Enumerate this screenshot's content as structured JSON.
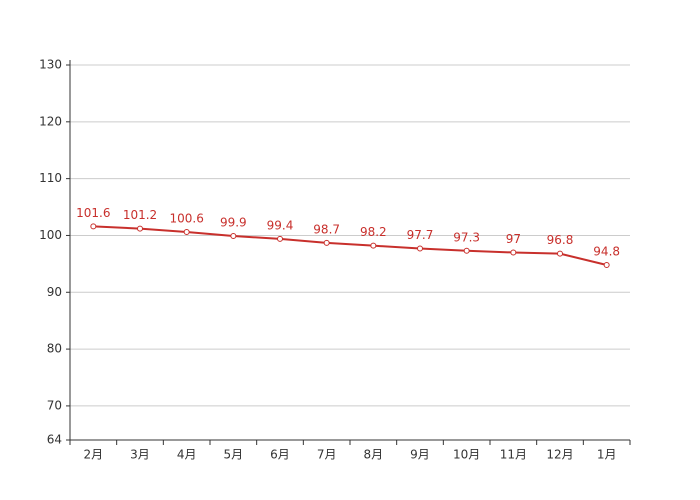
{
  "chart_data": {
    "type": "line",
    "categories": [
      "2月",
      "3月",
      "4月",
      "5月",
      "6月",
      "7月",
      "8月",
      "9月",
      "10月",
      "11月",
      "12月",
      "1月"
    ],
    "values": [
      101.6,
      101.2,
      100.6,
      99.9,
      99.4,
      98.7,
      98.2,
      97.7,
      97.3,
      97,
      96.8,
      94.8
    ],
    "color": "#c8302c",
    "ylim": [
      64,
      130
    ],
    "yticks": [
      64,
      70,
      80,
      90,
      100,
      110,
      120,
      130
    ],
    "grid": true
  }
}
